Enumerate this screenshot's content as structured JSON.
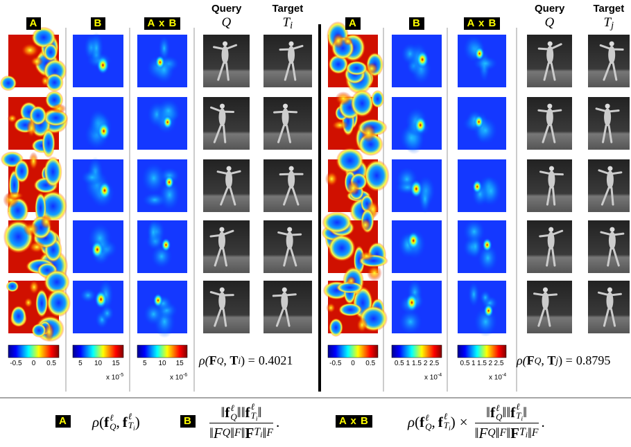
{
  "panels": [
    {
      "headers": {
        "a": "A",
        "b": "B",
        "ab": "A x B",
        "query": "Query",
        "query_symbol": "Q",
        "target": "Target",
        "target_symbol": "T",
        "target_index": "i"
      },
      "colorbars": [
        {
          "ticks": [
            "-0.5",
            "0",
            "0.5"
          ]
        },
        {
          "ticks": [
            "5",
            "10",
            "15"
          ],
          "scale": "x 10",
          "exponent": "-5"
        },
        {
          "ticks": [
            "5",
            "10",
            "15"
          ],
          "scale": "x 10",
          "exponent": "-6"
        }
      ],
      "correlation": {
        "rho": "ρ(",
        "F": "F",
        "Q": "Q",
        "sep": ", ",
        "T": "T",
        "index": "i",
        "close": ") =",
        "value": "0.4021"
      }
    },
    {
      "headers": {
        "a": "A",
        "b": "B",
        "ab": "A x B",
        "query": "Query",
        "query_symbol": "Q",
        "target": "Target",
        "target_symbol": "T",
        "target_index": "j"
      },
      "colorbars": [
        {
          "ticks": [
            "-0.5",
            "0",
            "0.5"
          ]
        },
        {
          "ticks": [
            "0.5",
            "1",
            "1.5",
            "2",
            "2.5"
          ],
          "scale": "x 10",
          "exponent": "-4"
        },
        {
          "ticks": [
            "0.5",
            "1",
            "1.5",
            "2",
            "2.5"
          ],
          "scale": "x 10",
          "exponent": "-4"
        }
      ],
      "correlation": {
        "rho": "ρ(",
        "F": "F",
        "Q": "Q",
        "sep": ", ",
        "T": "T",
        "index": "j",
        "close": ") =",
        "value": "0.8795"
      }
    }
  ],
  "legend": {
    "a": "A",
    "b": "B",
    "ab": "A x B",
    "symbols": {
      "rho": "ρ",
      "open": "(",
      "close": ")",
      "comma": ",",
      "f": "f",
      "ell": "ℓ",
      "Q": "Q",
      "T": "T",
      "i": "i",
      "norm": "‖",
      "F": "F",
      "period": ".",
      "times": "×"
    }
  }
}
